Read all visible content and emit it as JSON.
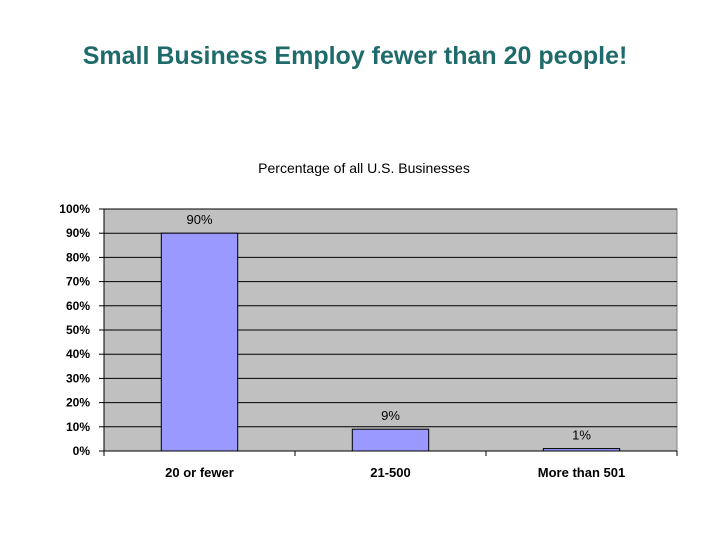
{
  "slide": {
    "title": "Small Business Employ fewer than 20 people!"
  },
  "chart_data": {
    "type": "bar",
    "title": "Percentage of all U.S. Businesses",
    "categories": [
      "20 or fewer",
      "21-500",
      "More than 501"
    ],
    "values": [
      90,
      9,
      1
    ],
    "data_labels": [
      "90%",
      "9%",
      "1%"
    ],
    "ylim": [
      0,
      100
    ],
    "y_ticks": [
      0,
      10,
      20,
      30,
      40,
      50,
      60,
      70,
      80,
      90,
      100
    ],
    "y_tick_labels": [
      "0%",
      "10%",
      "20%",
      "30%",
      "40%",
      "50%",
      "60%",
      "70%",
      "80%",
      "90%",
      "100%"
    ],
    "grid": true,
    "legend": "none",
    "colors": {
      "bar": "#9999ff",
      "plot_background": "#c0c0c0",
      "gridline": "#000000",
      "title_text": "#1f6b6b"
    }
  }
}
